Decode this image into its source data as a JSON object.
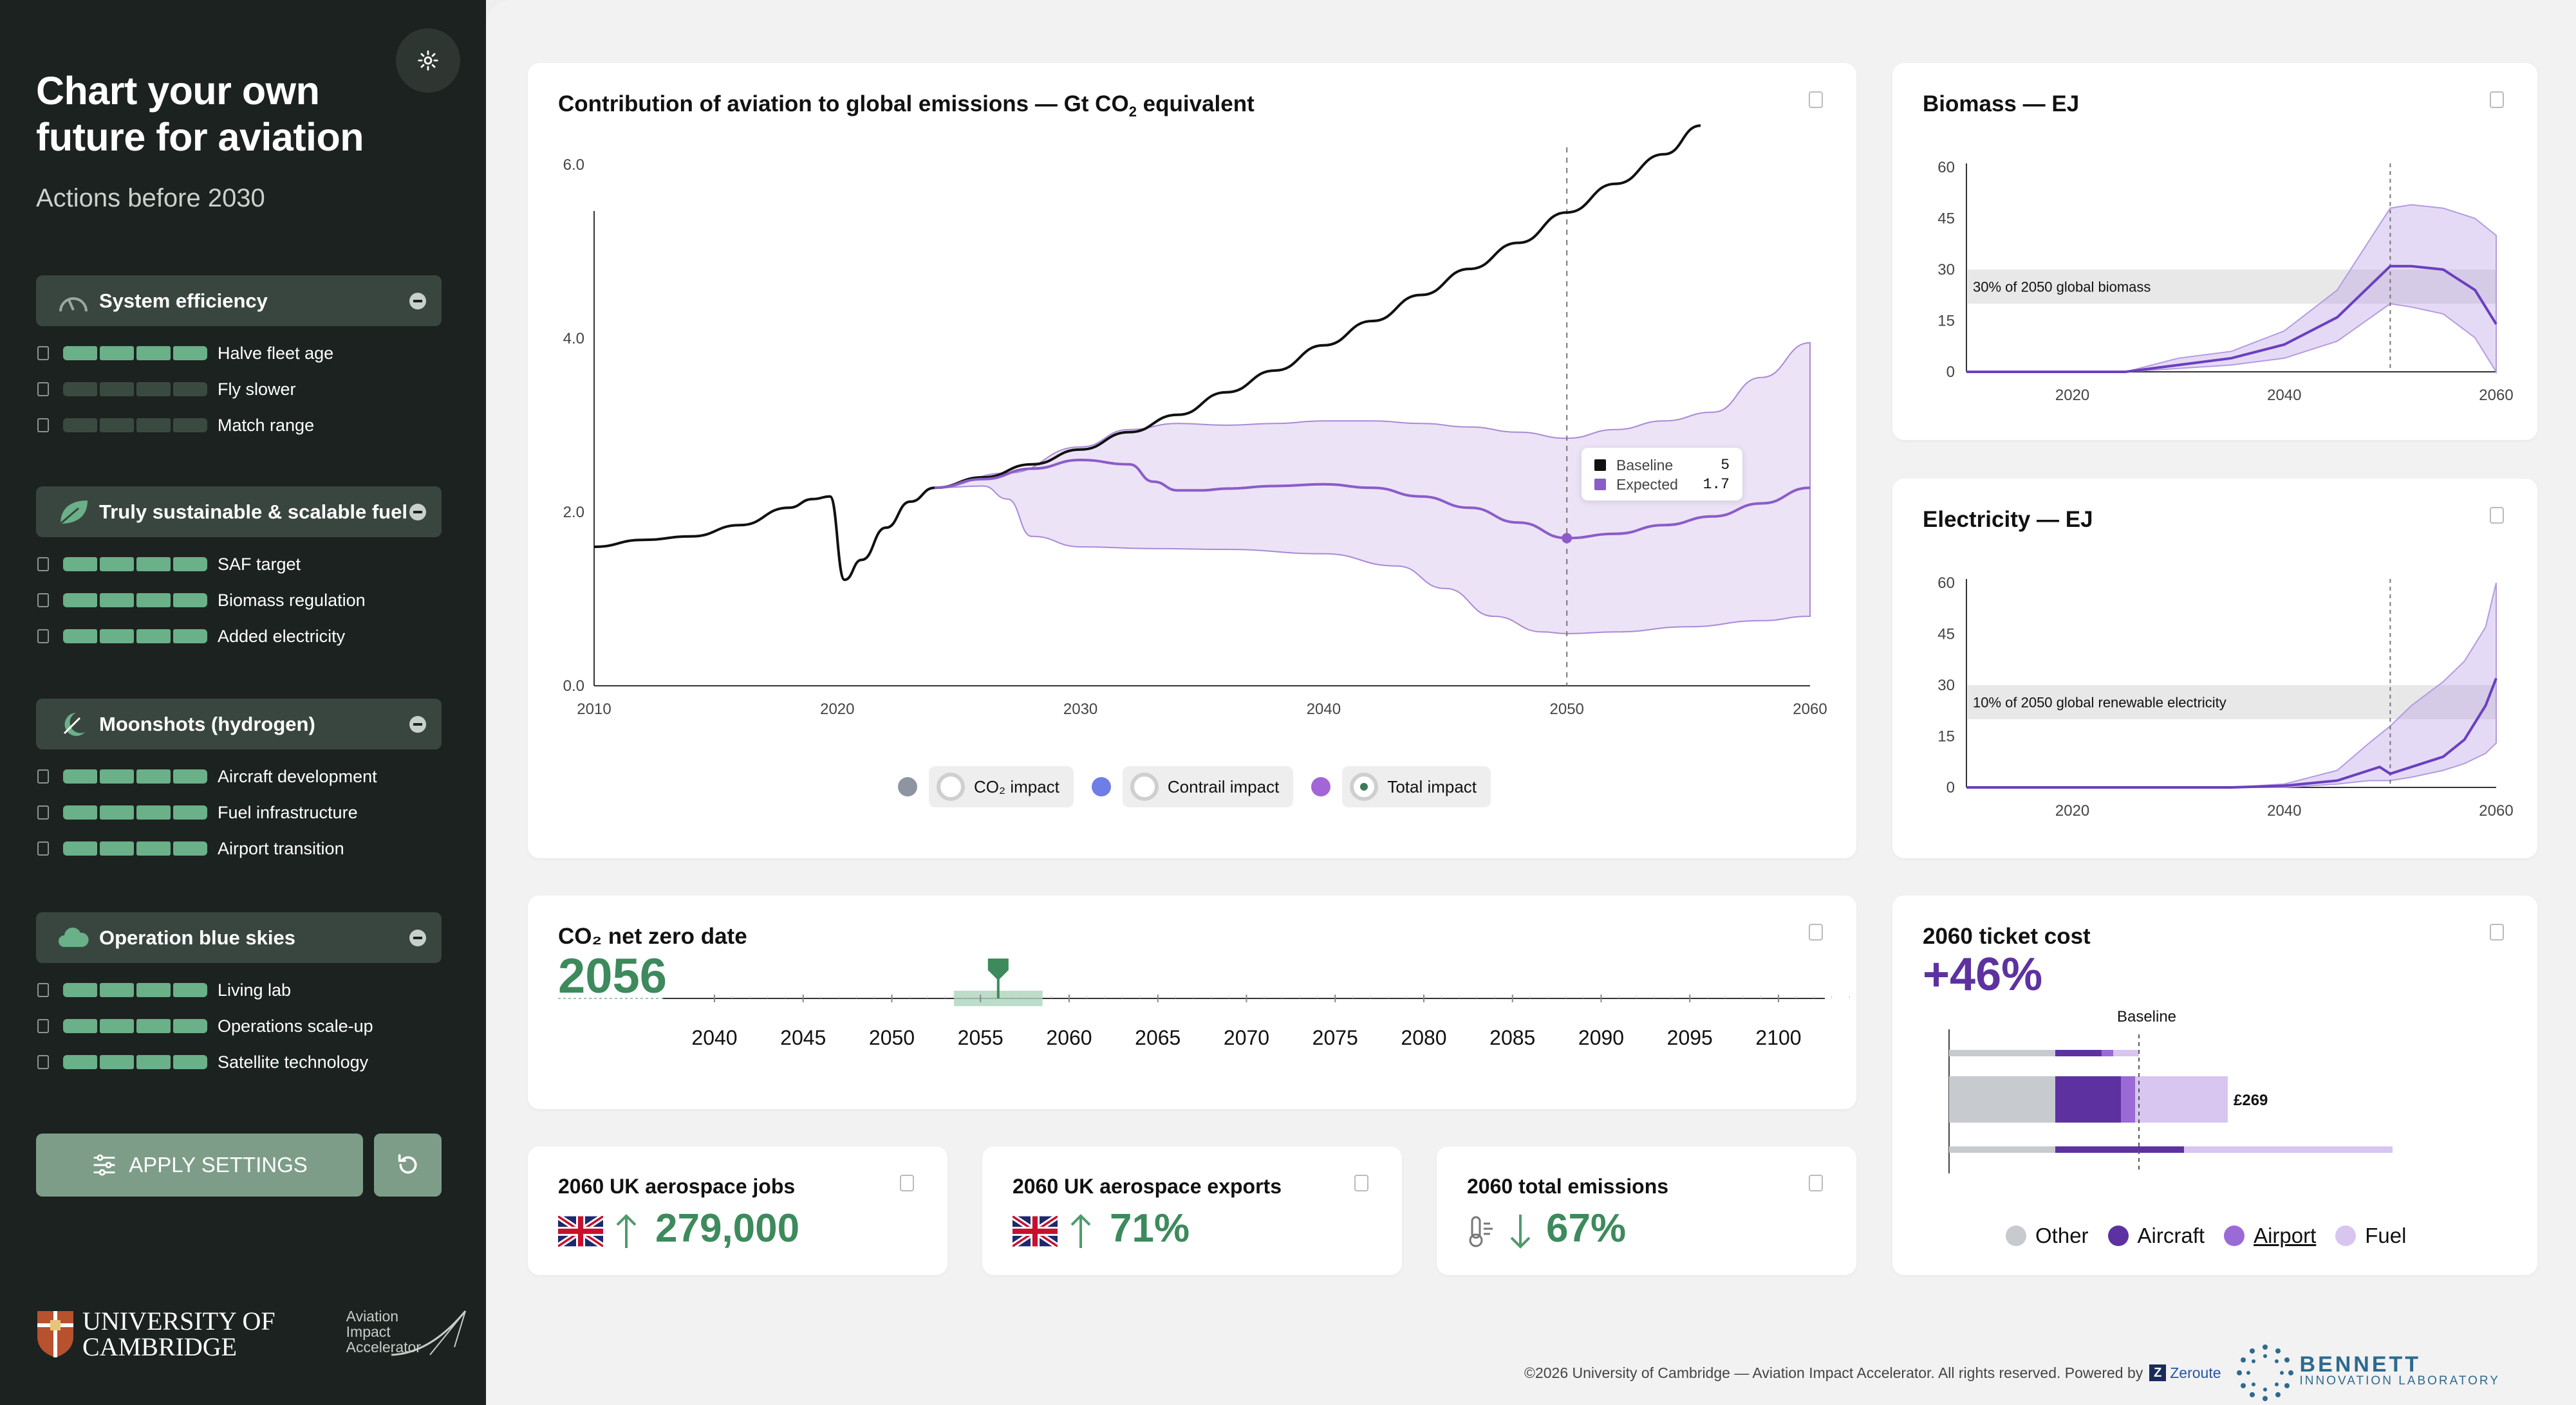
{
  "sidebar": {
    "title_line1": "Chart your own",
    "title_line2": "future for aviation",
    "subtitle": "Actions before 2030",
    "groups": [
      {
        "label": "System efficiency",
        "levers": [
          "Halve fleet age",
          "Fly slower",
          "Match range"
        ],
        "lever_levels": [
          4,
          0,
          0
        ]
      },
      {
        "label": "Truly sustainable & scalable fuel",
        "levers": [
          "SAF target",
          "Biomass regulation",
          "Added electricity"
        ],
        "lever_levels": [
          4,
          4,
          4
        ]
      },
      {
        "label": "Moonshots (hydrogen)",
        "levers": [
          "Aircraft development",
          "Fuel infrastructure",
          "Airport transition"
        ],
        "lever_levels": [
          4,
          4,
          4
        ]
      },
      {
        "label": "Operation blue skies",
        "levers": [
          "Living lab",
          "Operations scale-up",
          "Satellite technology"
        ],
        "lever_levels": [
          4,
          4,
          4
        ]
      }
    ],
    "apply_label": "APPLY SETTINGS",
    "logo_cambridge_line1": "UNIVERSITY OF",
    "logo_cambridge_line2": "CAMBRIDGE",
    "logo_aia": "Aviation Impact Accelerator"
  },
  "emissions": {
    "title": "Contribution of aviation to global emissions — Gt CO",
    "title_sub": "2",
    "title_tail": " equivalent",
    "tooltip": {
      "baseline_label": "Baseline",
      "baseline_value": "5",
      "expected_label": "Expected",
      "expected_value": "1.7"
    },
    "legend": {
      "co2": "CO₂ impact",
      "contrail": "Contrail impact",
      "total": "Total impact"
    },
    "colors": {
      "baseline": "#111111",
      "expected": "#8b5cc8",
      "band": "#ece3f6"
    }
  },
  "netzero": {
    "title": "CO₂ net zero date",
    "value": "2056",
    "ticks": [
      "2040",
      "2045",
      "2050",
      "2055",
      "2060",
      "2065",
      "2070",
      "2075",
      "2080",
      "2085",
      "2090",
      "2095",
      "2100"
    ]
  },
  "jobs": {
    "title": "2060 UK aerospace jobs",
    "value": "279,000"
  },
  "exports": {
    "title": "2060 UK aerospace exports",
    "value": "71%"
  },
  "total_emissions": {
    "title": "2060 total emissions",
    "value": "67%"
  },
  "biomass": {
    "title": "Biomass — EJ",
    "annotation": "30% of 2050 global biomass"
  },
  "electricity": {
    "title": "Electricity — EJ",
    "annotation": "10% of 2050 global renewable electricity"
  },
  "ticket": {
    "title": "2060 ticket cost",
    "value": "+46%",
    "baseline_label": "Baseline",
    "price_label": "£269",
    "legend": [
      "Other",
      "Aircraft",
      "Airport",
      "Fuel"
    ],
    "colors": {
      "other": "#c7cacf",
      "aircraft": "#5d32a0",
      "airport": "#9a6ad6",
      "fuel": "#d8c5f0"
    }
  },
  "footer": {
    "text": "©2026 University of Cambridge — Aviation Impact Accelerator. All rights reserved. Powered by",
    "zeroute": "Zeroute",
    "bennett_line1": "BENNETT",
    "bennett_line2": "INNOVATION LABORATORY"
  },
  "chart_data": [
    {
      "type": "line",
      "title": "Contribution of aviation to global emissions — Gt CO2 equivalent",
      "xlim": [
        2010,
        2060
      ],
      "ylim": [
        0,
        6
      ],
      "x_ticks": [
        "2010",
        "2020",
        "2030",
        "2040",
        "2050",
        "2060"
      ],
      "y_ticks": [
        "0.0",
        "2.0",
        "4.0",
        "6.0"
      ],
      "series": [
        {
          "name": "Baseline",
          "x": [
            2010,
            2012,
            2014,
            2016,
            2018,
            2019,
            2019.7,
            2020.3,
            2021,
            2022,
            2023,
            2024,
            2026,
            2028,
            2030,
            2032,
            2034,
            2036,
            2038,
            2040,
            2042,
            2044,
            2046,
            2048,
            2050,
            2052,
            2054,
            2055.5
          ],
          "y": [
            1.6,
            1.68,
            1.72,
            1.85,
            2.05,
            2.15,
            2.18,
            1.22,
            1.45,
            1.82,
            2.12,
            2.28,
            2.4,
            2.55,
            2.72,
            2.92,
            3.12,
            3.38,
            3.63,
            3.92,
            4.2,
            4.5,
            4.8,
            5.1,
            5.45,
            5.78,
            6.12,
            6.45
          ]
        },
        {
          "name": "Expected",
          "x": [
            2024,
            2026,
            2028,
            2030,
            2032,
            2033,
            2034,
            2035,
            2036,
            2038,
            2040,
            2042,
            2044,
            2046,
            2048,
            2050,
            2052,
            2054,
            2056,
            2058,
            2060
          ],
          "y": [
            2.28,
            2.38,
            2.5,
            2.6,
            2.55,
            2.35,
            2.25,
            2.25,
            2.27,
            2.3,
            2.32,
            2.28,
            2.18,
            2.05,
            1.88,
            1.7,
            1.75,
            1.85,
            1.95,
            2.1,
            2.28
          ]
        },
        {
          "name": "Expected upper",
          "x": [
            2024,
            2027,
            2030,
            2032,
            2034,
            2036,
            2038,
            2040,
            2042,
            2044,
            2046,
            2048,
            2050,
            2052,
            2054,
            2056,
            2058,
            2060
          ],
          "y": [
            2.28,
            2.45,
            2.75,
            2.95,
            3.02,
            3.0,
            3.02,
            3.05,
            3.05,
            3.02,
            2.98,
            2.92,
            2.85,
            2.95,
            3.05,
            3.15,
            3.55,
            3.95
          ]
        },
        {
          "name": "Expected lower",
          "x": [
            2024,
            2026,
            2027,
            2028,
            2030,
            2033,
            2036,
            2040,
            2043,
            2045,
            2047,
            2049,
            2050,
            2052,
            2055,
            2058,
            2060
          ],
          "y": [
            2.28,
            2.3,
            2.15,
            1.72,
            1.6,
            1.58,
            1.57,
            1.52,
            1.38,
            1.12,
            0.8,
            0.62,
            0.6,
            0.62,
            0.68,
            0.75,
            0.8
          ]
        }
      ]
    },
    {
      "type": "area",
      "title": "Biomass — EJ",
      "xlim": [
        2010,
        2060
      ],
      "ylim": [
        0,
        60
      ],
      "x_ticks": [
        "2020",
        "2040",
        "2060"
      ],
      "y_ticks": [
        "0",
        "15",
        "30",
        "45",
        "60"
      ],
      "series": [
        {
          "name": "Expected",
          "x": [
            2010,
            2025,
            2030,
            2035,
            2040,
            2045,
            2050,
            2052,
            2055,
            2058,
            2060
          ],
          "y": [
            0,
            0,
            2,
            4,
            8,
            16,
            31,
            31,
            30,
            24,
            14
          ]
        },
        {
          "name": "Upper",
          "x": [
            2010,
            2025,
            2030,
            2035,
            2040,
            2045,
            2050,
            2052,
            2055,
            2058,
            2060
          ],
          "y": [
            0,
            0,
            4,
            6,
            12,
            24,
            48,
            49,
            48,
            45,
            40
          ]
        },
        {
          "name": "Lower",
          "x": [
            2010,
            2025,
            2030,
            2035,
            2040,
            2045,
            2050,
            2052,
            2055,
            2058,
            2060
          ],
          "y": [
            0,
            0,
            1,
            2,
            4,
            9,
            20,
            19,
            17,
            10,
            0
          ]
        }
      ]
    },
    {
      "type": "area",
      "title": "Electricity — EJ",
      "xlim": [
        2010,
        2060
      ],
      "ylim": [
        0,
        60
      ],
      "x_ticks": [
        "2020",
        "2040",
        "2060"
      ],
      "y_ticks": [
        "0",
        "15",
        "30",
        "45",
        "60"
      ],
      "series": [
        {
          "name": "Expected",
          "x": [
            2010,
            2035,
            2040,
            2045,
            2048,
            2049,
            2050,
            2052,
            2055,
            2057,
            2059,
            2060
          ],
          "y": [
            0,
            0,
            0.5,
            2,
            5,
            6,
            4,
            6,
            9,
            14,
            24,
            32
          ]
        },
        {
          "name": "Upper",
          "x": [
            2010,
            2035,
            2040,
            2045,
            2048,
            2050,
            2052,
            2055,
            2057,
            2059,
            2060
          ],
          "y": [
            0,
            0,
            1,
            5,
            13,
            18,
            24,
            31,
            37,
            47,
            60
          ]
        },
        {
          "name": "Lower",
          "x": [
            2010,
            2035,
            2040,
            2045,
            2048,
            2050,
            2052,
            2055,
            2057,
            2059,
            2060
          ],
          "y": [
            0,
            0,
            0,
            1,
            2,
            2,
            3,
            5,
            7,
            10,
            13
          ]
        }
      ]
    }
  ]
}
